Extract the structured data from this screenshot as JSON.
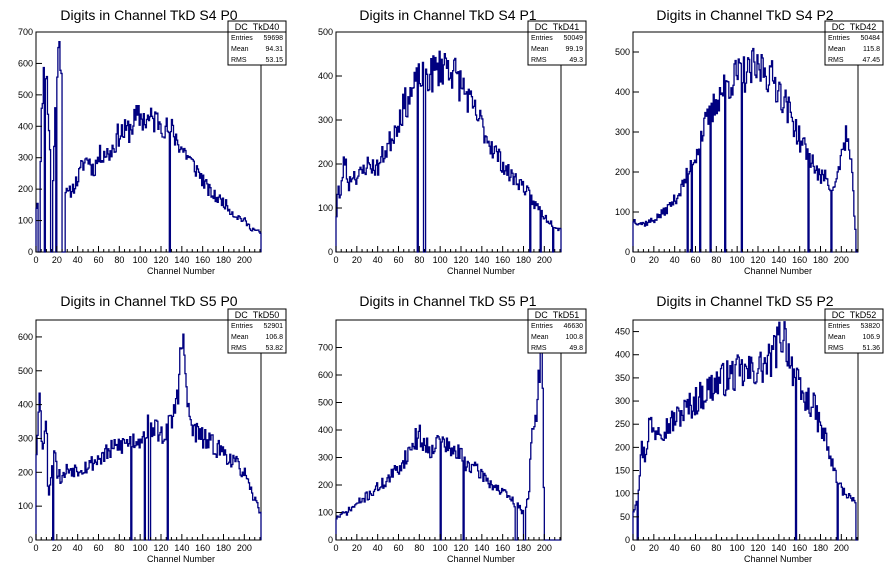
{
  "chart_data": [
    {
      "type": "histogram",
      "title": "Digits in Channel TkD S4 P0",
      "xlabel": "Channel Number",
      "xlim": [
        0,
        216
      ],
      "ylim": [
        0,
        700
      ],
      "xticks": [
        0,
        20,
        40,
        60,
        80,
        100,
        120,
        140,
        160,
        180,
        200
      ],
      "yticks": [
        0,
        100,
        200,
        300,
        400,
        500,
        600,
        700
      ],
      "stats": {
        "name": "DC_TkD40",
        "rows": [
          {
            "label": "Entries",
            "value": "59698"
          },
          {
            "label": "Mean",
            "value": "94.31"
          },
          {
            "label": "RMS",
            "value": "53.15"
          }
        ]
      },
      "profile": [
        [
          0,
          140
        ],
        [
          4,
          200
        ],
        [
          6,
          500
        ],
        [
          9,
          620
        ],
        [
          12,
          430
        ],
        [
          16,
          180
        ],
        [
          20,
          600
        ],
        [
          24,
          650
        ],
        [
          28,
          200
        ],
        [
          30,
          180
        ],
        [
          35,
          200
        ],
        [
          40,
          230
        ],
        [
          45,
          280
        ],
        [
          50,
          300
        ],
        [
          55,
          260
        ],
        [
          60,
          300
        ],
        [
          65,
          320
        ],
        [
          70,
          310
        ],
        [
          75,
          340
        ],
        [
          80,
          380
        ],
        [
          85,
          380
        ],
        [
          90,
          390
        ],
        [
          95,
          420
        ],
        [
          100,
          430
        ],
        [
          105,
          420
        ],
        [
          110,
          420
        ],
        [
          115,
          420
        ],
        [
          120,
          420
        ],
        [
          125,
          390
        ],
        [
          130,
          390
        ],
        [
          135,
          360
        ],
        [
          140,
          330
        ],
        [
          145,
          310
        ],
        [
          150,
          280
        ],
        [
          155,
          260
        ],
        [
          160,
          230
        ],
        [
          165,
          200
        ],
        [
          170,
          180
        ],
        [
          175,
          170
        ],
        [
          180,
          160
        ],
        [
          185,
          140
        ],
        [
          190,
          120
        ],
        [
          195,
          110
        ],
        [
          200,
          100
        ],
        [
          205,
          80
        ],
        [
          210,
          70
        ],
        [
          216,
          60
        ]
      ],
      "zeros": [
        [
          2,
          4
        ],
        [
          8,
          9
        ],
        [
          14,
          16
        ],
        [
          19,
          20
        ],
        [
          25,
          28
        ],
        [
          128,
          129
        ]
      ],
      "seed": 11
    },
    {
      "type": "histogram",
      "title": "Digits in Channel TkD S4 P1",
      "xlabel": "Channel Number",
      "xlim": [
        0,
        216
      ],
      "ylim": [
        0,
        500
      ],
      "xticks": [
        0,
        20,
        40,
        60,
        80,
        100,
        120,
        140,
        160,
        180,
        200
      ],
      "yticks": [
        0,
        100,
        200,
        300,
        400,
        500
      ],
      "stats": {
        "name": "DC_TkD41",
        "rows": [
          {
            "label": "Entries",
            "value": "50049"
          },
          {
            "label": "Mean",
            "value": "99.19"
          },
          {
            "label": "RMS",
            "value": "49.3"
          }
        ]
      },
      "profile": [
        [
          0,
          60
        ],
        [
          2,
          160
        ],
        [
          4,
          110
        ],
        [
          8,
          220
        ],
        [
          12,
          150
        ],
        [
          16,
          180
        ],
        [
          20,
          170
        ],
        [
          25,
          180
        ],
        [
          30,
          200
        ],
        [
          40,
          190
        ],
        [
          45,
          220
        ],
        [
          50,
          240
        ],
        [
          55,
          270
        ],
        [
          60,
          300
        ],
        [
          65,
          330
        ],
        [
          70,
          350
        ],
        [
          75,
          370
        ],
        [
          80,
          390
        ],
        [
          85,
          400
        ],
        [
          90,
          400
        ],
        [
          95,
          410
        ],
        [
          100,
          420
        ],
        [
          105,
          430
        ],
        [
          110,
          420
        ],
        [
          115,
          400
        ],
        [
          120,
          380
        ],
        [
          125,
          360
        ],
        [
          130,
          330
        ],
        [
          135,
          310
        ],
        [
          140,
          290
        ],
        [
          145,
          260
        ],
        [
          150,
          240
        ],
        [
          155,
          220
        ],
        [
          160,
          200
        ],
        [
          165,
          180
        ],
        [
          170,
          170
        ],
        [
          175,
          160
        ],
        [
          180,
          150
        ],
        [
          185,
          130
        ],
        [
          190,
          110
        ],
        [
          195,
          100
        ],
        [
          200,
          80
        ],
        [
          205,
          70
        ],
        [
          210,
          60
        ],
        [
          216,
          50
        ]
      ],
      "zeros": [
        [
          78,
          79
        ],
        [
          84,
          86
        ],
        [
          186,
          187
        ],
        [
          196,
          197
        ],
        [
          208,
          209
        ]
      ],
      "seed": 23
    },
    {
      "type": "histogram",
      "title": "Digits in Channel TkD S4 P2",
      "xlabel": "Channel Number",
      "xlim": [
        0,
        216
      ],
      "ylim": [
        0,
        550
      ],
      "xticks": [
        0,
        20,
        40,
        60,
        80,
        100,
        120,
        140,
        160,
        180,
        200
      ],
      "yticks": [
        0,
        100,
        200,
        300,
        400,
        500
      ],
      "stats": {
        "name": "DC_TkD42",
        "rows": [
          {
            "label": "Entries",
            "value": "50484"
          },
          {
            "label": "Mean",
            "value": "115.8"
          },
          {
            "label": "RMS",
            "value": "47.45"
          }
        ]
      },
      "profile": [
        [
          0,
          80
        ],
        [
          10,
          70
        ],
        [
          20,
          80
        ],
        [
          30,
          100
        ],
        [
          40,
          130
        ],
        [
          45,
          150
        ],
        [
          50,
          180
        ],
        [
          55,
          210
        ],
        [
          60,
          240
        ],
        [
          65,
          290
        ],
        [
          70,
          320
        ],
        [
          75,
          340
        ],
        [
          80,
          380
        ],
        [
          85,
          400
        ],
        [
          90,
          420
        ],
        [
          95,
          430
        ],
        [
          100,
          440
        ],
        [
          105,
          450
        ],
        [
          110,
          440
        ],
        [
          115,
          460
        ],
        [
          120,
          450
        ],
        [
          125,
          470
        ],
        [
          130,
          440
        ],
        [
          135,
          430
        ],
        [
          140,
          410
        ],
        [
          145,
          380
        ],
        [
          150,
          350
        ],
        [
          155,
          320
        ],
        [
          160,
          280
        ],
        [
          165,
          260
        ],
        [
          170,
          240
        ],
        [
          175,
          210
        ],
        [
          180,
          180
        ],
        [
          185,
          200
        ],
        [
          190,
          160
        ],
        [
          195,
          170
        ],
        [
          200,
          240
        ],
        [
          205,
          300
        ],
        [
          210,
          200
        ],
        [
          214,
          40
        ]
      ],
      "zeros": [
        [
          52,
          53
        ],
        [
          56,
          57
        ],
        [
          64,
          65
        ],
        [
          74,
          75
        ],
        [
          88,
          89
        ],
        [
          104,
          105
        ],
        [
          168,
          169
        ],
        [
          190,
          191
        ],
        [
          214,
          216
        ]
      ],
      "seed": 37
    },
    {
      "type": "histogram",
      "title": "Digits in Channel TkD S5 P0",
      "xlabel": "Channel Number",
      "xlim": [
        0,
        216
      ],
      "ylim": [
        0,
        650
      ],
      "xticks": [
        0,
        20,
        40,
        60,
        80,
        100,
        120,
        140,
        160,
        180,
        200
      ],
      "yticks": [
        0,
        100,
        200,
        300,
        400,
        500,
        600
      ],
      "stats": {
        "name": "DC_TkD50",
        "rows": [
          {
            "label": "Entries",
            "value": "52901"
          },
          {
            "label": "Mean",
            "value": "106.8"
          },
          {
            "label": "RMS",
            "value": "53.82"
          }
        ]
      },
      "profile": [
        [
          0,
          230
        ],
        [
          3,
          450
        ],
        [
          6,
          280
        ],
        [
          10,
          350
        ],
        [
          12,
          120
        ],
        [
          16,
          250
        ],
        [
          18,
          300
        ],
        [
          20,
          200
        ],
        [
          25,
          180
        ],
        [
          30,
          210
        ],
        [
          40,
          210
        ],
        [
          50,
          220
        ],
        [
          60,
          240
        ],
        [
          70,
          260
        ],
        [
          80,
          280
        ],
        [
          90,
          290
        ],
        [
          100,
          300
        ],
        [
          105,
          330
        ],
        [
          110,
          340
        ],
        [
          115,
          330
        ],
        [
          120,
          310
        ],
        [
          125,
          320
        ],
        [
          130,
          350
        ],
        [
          133,
          380
        ],
        [
          137,
          460
        ],
        [
          140,
          600
        ],
        [
          143,
          520
        ],
        [
          146,
          380
        ],
        [
          150,
          330
        ],
        [
          160,
          300
        ],
        [
          170,
          280
        ],
        [
          180,
          260
        ],
        [
          190,
          230
        ],
        [
          200,
          200
        ],
        [
          205,
          150
        ],
        [
          210,
          120
        ],
        [
          216,
          80
        ]
      ],
      "zeros": [
        [
          16,
          17
        ],
        [
          91,
          92
        ],
        [
          104,
          105
        ],
        [
          108,
          110
        ],
        [
          126,
          127
        ]
      ],
      "seed": 53
    },
    {
      "type": "histogram",
      "title": "Digits in Channel TkD S5 P1",
      "xlabel": "Channel Number",
      "xlim": [
        0,
        216
      ],
      "ylim": [
        0,
        800
      ],
      "xticks": [
        0,
        20,
        40,
        60,
        80,
        100,
        120,
        140,
        160,
        180,
        200
      ],
      "yticks": [
        0,
        100,
        200,
        300,
        400,
        500,
        600,
        700
      ],
      "stats": {
        "name": "DC_TkD51",
        "rows": [
          {
            "label": "Entries",
            "value": "46630"
          },
          {
            "label": "Mean",
            "value": "100.8"
          },
          {
            "label": "RMS",
            "value": "49.8"
          }
        ]
      },
      "profile": [
        [
          0,
          80
        ],
        [
          10,
          100
        ],
        [
          20,
          130
        ],
        [
          30,
          160
        ],
        [
          40,
          190
        ],
        [
          50,
          220
        ],
        [
          60,
          260
        ],
        [
          65,
          290
        ],
        [
          70,
          320
        ],
        [
          75,
          360
        ],
        [
          80,
          380
        ],
        [
          85,
          350
        ],
        [
          90,
          330
        ],
        [
          95,
          350
        ],
        [
          100,
          360
        ],
        [
          105,
          350
        ],
        [
          110,
          320
        ],
        [
          115,
          320
        ],
        [
          120,
          310
        ],
        [
          125,
          280
        ],
        [
          130,
          270
        ],
        [
          135,
          250
        ],
        [
          140,
          240
        ],
        [
          145,
          220
        ],
        [
          150,
          200
        ],
        [
          155,
          190
        ],
        [
          160,
          170
        ],
        [
          165,
          160
        ],
        [
          170,
          140
        ],
        [
          175,
          120
        ],
        [
          180,
          100
        ],
        [
          185,
          160
        ],
        [
          188,
          380
        ],
        [
          192,
          420
        ],
        [
          195,
          620
        ],
        [
          198,
          700
        ],
        [
          200,
          0
        ]
      ],
      "zeros": [
        [
          100,
          101
        ],
        [
          122,
          123
        ],
        [
          172,
          174
        ],
        [
          180,
          182
        ],
        [
          200,
          216
        ]
      ],
      "seed": 71
    },
    {
      "type": "histogram",
      "title": "Digits in Channel TkD S5 P2",
      "xlabel": "Channel Number",
      "xlim": [
        0,
        216
      ],
      "ylim": [
        0,
        475
      ],
      "xticks": [
        0,
        20,
        40,
        60,
        80,
        100,
        120,
        140,
        160,
        180,
        200
      ],
      "yticks": [
        0,
        50,
        100,
        150,
        200,
        250,
        300,
        350,
        400,
        450
      ],
      "stats": {
        "name": "DC_TkD52",
        "rows": [
          {
            "label": "Entries",
            "value": "53820"
          },
          {
            "label": "Mean",
            "value": "106.9"
          },
          {
            "label": "RMS",
            "value": "51.36"
          }
        ]
      },
      "profile": [
        [
          0,
          60
        ],
        [
          5,
          100
        ],
        [
          8,
          200
        ],
        [
          12,
          180
        ],
        [
          16,
          260
        ],
        [
          20,
          230
        ],
        [
          25,
          250
        ],
        [
          30,
          240
        ],
        [
          40,
          260
        ],
        [
          50,
          280
        ],
        [
          60,
          300
        ],
        [
          70,
          320
        ],
        [
          80,
          340
        ],
        [
          90,
          350
        ],
        [
          100,
          360
        ],
        [
          110,
          360
        ],
        [
          120,
          370
        ],
        [
          130,
          380
        ],
        [
          135,
          400
        ],
        [
          140,
          430
        ],
        [
          145,
          450
        ],
        [
          150,
          400
        ],
        [
          155,
          360
        ],
        [
          160,
          320
        ],
        [
          165,
          300
        ],
        [
          170,
          300
        ],
        [
          175,
          280
        ],
        [
          180,
          240
        ],
        [
          185,
          220
        ],
        [
          190,
          170
        ],
        [
          195,
          140
        ],
        [
          200,
          110
        ],
        [
          205,
          100
        ],
        [
          210,
          90
        ],
        [
          214,
          70
        ]
      ],
      "zeros": [
        [
          4,
          5
        ],
        [
          156,
          157
        ],
        [
          196,
          197
        ],
        [
          214,
          216
        ]
      ],
      "seed": 97
    }
  ]
}
